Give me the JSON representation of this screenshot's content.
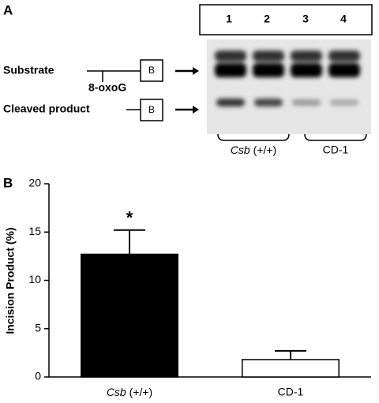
{
  "panel_a": {
    "label": "A",
    "lanes": [
      "1",
      "2",
      "3",
      "4"
    ],
    "substrate": "Substrate",
    "lesion": "8-oxoG",
    "biotin": "B",
    "cleaved": "Cleaved product",
    "groups": [
      "Csb (+/+)",
      "CD-1"
    ]
  },
  "chart_data": {
    "type": "bar",
    "panel_label": "B",
    "ylabel": "Incision Product (%)",
    "categories": [
      "Csb (+/+)",
      "CD-1"
    ],
    "values": [
      12.7,
      1.8
    ],
    "errors": [
      2.5,
      0.9
    ],
    "colors": [
      "#000000",
      "#ffffff"
    ],
    "annotation": "*",
    "ylim": [
      0,
      20
    ],
    "yticks": [
      0,
      5,
      10,
      15,
      20
    ]
  }
}
